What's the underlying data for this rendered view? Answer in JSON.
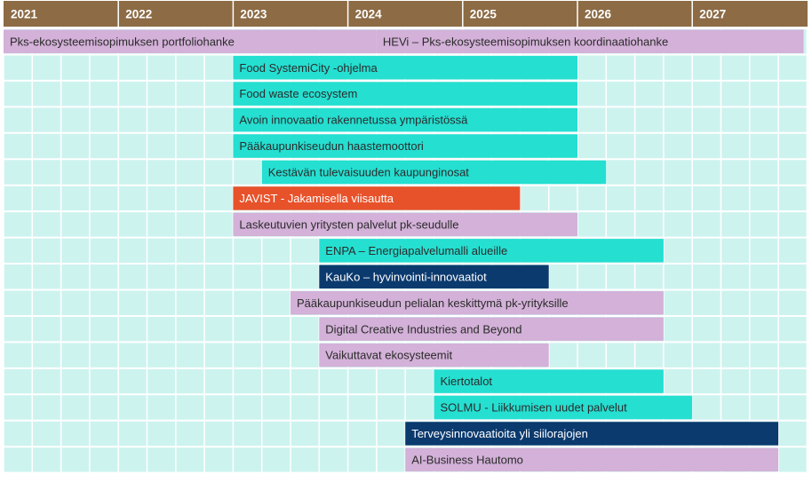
{
  "chart_data": {
    "type": "gantt",
    "title": "",
    "x_unit": "year",
    "xlim": [
      2021.0,
      2027.97
    ],
    "years": [
      "2021",
      "2022",
      "2023",
      "2024",
      "2025",
      "2026",
      "2027"
    ],
    "grid": true,
    "colors": {
      "header": "#8c6b45",
      "header_text": "#ffffff",
      "cell": "#cdf3ef",
      "grid_line": "#ffffff",
      "lilac": "#d3b1d8",
      "teal": "#25dfd1",
      "orange": "#e8522a",
      "navy": "#0b3a6e"
    },
    "rows": [
      [
        {
          "label": "Pks-ekosysteemisopimuksen portfoliohanke",
          "start": 2021.0,
          "end": 2024.25,
          "color": "lilac",
          "text": "#2b2b2b"
        },
        {
          "label": "HEVi – Pks-ekosysteemisopimuksen koordinaatiohanke",
          "start": 2024.25,
          "end": 2027.97,
          "color": "lilac",
          "text": "#2b2b2b"
        }
      ],
      [
        {
          "label": "Food SystemiCity -ohjelma",
          "start": 2023.0,
          "end": 2026.0,
          "color": "teal",
          "text": "#2b2b2b"
        }
      ],
      [
        {
          "label": "Food waste ecosystem",
          "start": 2023.0,
          "end": 2026.0,
          "color": "teal",
          "text": "#2b2b2b"
        }
      ],
      [
        {
          "label": "Avoin innovaatio rakennetussa ympäristössä",
          "start": 2023.0,
          "end": 2026.0,
          "color": "teal",
          "text": "#2b2b2b"
        }
      ],
      [
        {
          "label": "Pääkaupunkiseudun haastemoottori",
          "start": 2023.0,
          "end": 2026.0,
          "color": "teal",
          "text": "#2b2b2b"
        }
      ],
      [
        {
          "label": "Kestävän tulevaisuuden kaupunginosat",
          "start": 2023.25,
          "end": 2026.25,
          "color": "teal",
          "text": "#2b2b2b"
        }
      ],
      [
        {
          "label": "JAVIST - Jakamisella viisautta",
          "start": 2023.0,
          "end": 2025.5,
          "color": "orange",
          "text": "#ffffff"
        }
      ],
      [
        {
          "label": "Laskeutuvien yritysten palvelut pk-seudulle",
          "start": 2023.0,
          "end": 2026.0,
          "color": "lilac",
          "text": "#2b2b2b"
        }
      ],
      [
        {
          "label": "ENPA – Energiapalvelumalli alueille",
          "start": 2023.75,
          "end": 2026.75,
          "color": "teal",
          "text": "#2b2b2b"
        }
      ],
      [
        {
          "label": "KauKo – hyvinvointi-innovaatiot",
          "start": 2023.75,
          "end": 2025.75,
          "color": "navy",
          "text": "#ffffff"
        }
      ],
      [
        {
          "label": "Pääkaupunkiseudun pelialan keskittymä pk-yrityksille",
          "start": 2023.5,
          "end": 2026.75,
          "color": "lilac",
          "text": "#2b2b2b"
        }
      ],
      [
        {
          "label": "Digital Creative Industries and Beyond",
          "start": 2023.75,
          "end": 2026.75,
          "color": "lilac",
          "text": "#2b2b2b"
        }
      ],
      [
        {
          "label": "Vaikuttavat ekosysteemit",
          "start": 2023.75,
          "end": 2025.75,
          "color": "lilac",
          "text": "#2b2b2b"
        }
      ],
      [
        {
          "label": "Kiertotalot",
          "start": 2024.75,
          "end": 2026.75,
          "color": "teal",
          "text": "#2b2b2b"
        }
      ],
      [
        {
          "label": "SOLMU - Liikkumisen uudet palvelut",
          "start": 2024.75,
          "end": 2027.0,
          "color": "teal",
          "text": "#2b2b2b"
        }
      ],
      [
        {
          "label": "Terveysinnovaatioita yli siilorajojen",
          "start": 2024.5,
          "end": 2027.75,
          "color": "navy",
          "text": "#ffffff"
        }
      ],
      [
        {
          "label": "AI-Business Hautomo",
          "start": 2024.5,
          "end": 2027.75,
          "color": "lilac",
          "text": "#2b2b2b"
        }
      ]
    ]
  }
}
